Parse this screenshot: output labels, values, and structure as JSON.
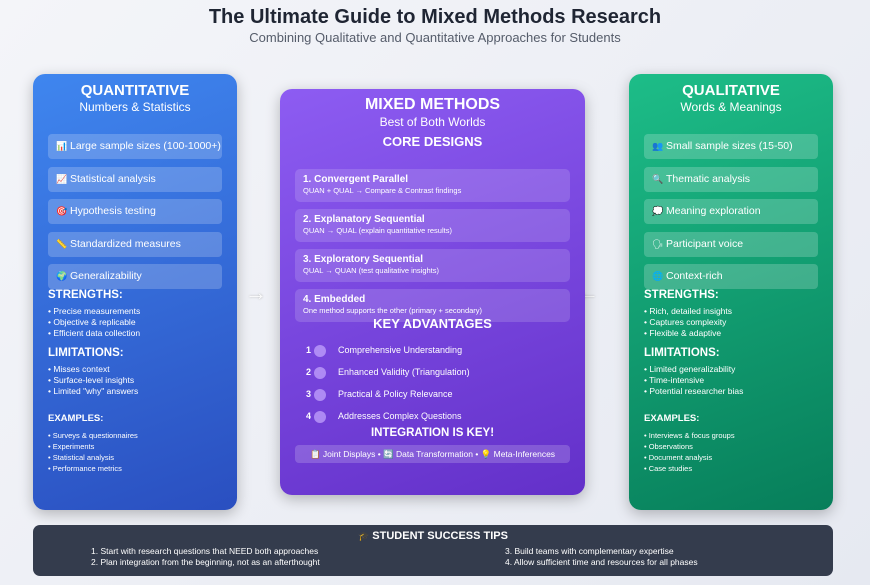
{
  "title": "The Ultimate Guide to Mixed Methods Research",
  "subtitle": "Combining Qualitative and Quantitative Approaches for Students",
  "quantitative": {
    "title": "QUANTITATIVE",
    "subtitle": "Numbers & Statistics",
    "color": "#3572e0",
    "items": [
      {
        "icon": "bar-chart-icon",
        "glyph": "📊",
        "label": "Large sample sizes (100-1000+)"
      },
      {
        "icon": "line-chart-icon",
        "glyph": "📈",
        "label": "Statistical analysis"
      },
      {
        "icon": "target-icon",
        "glyph": "🎯",
        "label": "Hypothesis testing"
      },
      {
        "icon": "ruler-icon",
        "glyph": "📏",
        "label": "Standardized measures"
      },
      {
        "icon": "globe-icon",
        "glyph": "🌍",
        "label": "Generalizability"
      }
    ],
    "strengths_title": "STRENGTHS:",
    "strengths": [
      "• Precise measurements",
      "• Objective & replicable",
      "• Efficient data collection"
    ],
    "limitations_title": "LIMITATIONS:",
    "limitations": [
      "• Misses context",
      "• Surface-level insights",
      "• Limited \"why\" answers"
    ],
    "examples_title": "EXAMPLES:",
    "examples": [
      "• Surveys & questionnaires",
      "• Experiments",
      "• Statistical analysis",
      "• Performance metrics"
    ]
  },
  "qualitative": {
    "title": "QUALITATIVE",
    "subtitle": "Words & Meanings",
    "color": "#10a572",
    "items": [
      {
        "icon": "people-icon",
        "glyph": "👥",
        "label": "Small sample sizes (15-50)"
      },
      {
        "icon": "magnifier-icon",
        "glyph": "🔍",
        "label": "Thematic analysis"
      },
      {
        "icon": "speech-bubble-icon",
        "glyph": "💭",
        "label": "Meaning exploration"
      },
      {
        "icon": "speaking-head-icon",
        "glyph": "🗣",
        "label": "Participant voice"
      },
      {
        "icon": "globe-icon",
        "glyph": "🌐",
        "label": "Context-rich"
      }
    ],
    "strengths_title": "STRENGTHS:",
    "strengths": [
      "• Rich, detailed insights",
      "• Captures complexity",
      "• Flexible & adaptive"
    ],
    "limitations_title": "LIMITATIONS:",
    "limitations": [
      "• Limited generalizability",
      "• Time-intensive",
      "• Potential researcher bias"
    ],
    "examples_title": "EXAMPLES:",
    "examples": [
      "• Interviews & focus groups",
      "• Observations",
      "• Document analysis",
      "• Case studies"
    ]
  },
  "mixed": {
    "title": "MIXED METHODS",
    "subtitle": "Best of Both Worlds",
    "color": "#7644dc",
    "core_title": "CORE DESIGNS",
    "designs": [
      {
        "title": "1. Convergent Parallel",
        "desc": "QUAN + QUAL → Compare & Contrast findings"
      },
      {
        "title": "2. Explanatory Sequential",
        "desc": "QUAN → QUAL (explain quantitative results)"
      },
      {
        "title": "3. Exploratory Sequential",
        "desc": "QUAL → QUAN (test qualitative insights)"
      },
      {
        "title": "4. Embedded",
        "desc": "One method supports the other (primary + secondary)"
      }
    ],
    "advantages_title": "KEY ADVANTAGES",
    "advantages": [
      {
        "n": "1",
        "label": "Comprehensive Understanding"
      },
      {
        "n": "2",
        "label": "Enhanced Validity (Triangulation)"
      },
      {
        "n": "3",
        "label": "Practical & Policy Relevance"
      },
      {
        "n": "4",
        "label": "Addresses Complex Questions"
      }
    ],
    "integration_title": "INTEGRATION IS KEY!",
    "integration": "📋 Joint Displays • 🔄 Data Transformation • 💡 Meta-Inferences"
  },
  "arrows": {
    "left": "→",
    "right": "←"
  },
  "tips": {
    "icon": "graduation-cap-icon",
    "glyph": "🎓",
    "title": "STUDENT SUCCESS TIPS",
    "items": [
      "1. Start with research questions that NEED both approaches",
      "2. Plan integration from the beginning, not as an afterthought",
      "3. Build teams with complementary expertise",
      "4. Allow sufficient time and resources for all phases"
    ]
  }
}
